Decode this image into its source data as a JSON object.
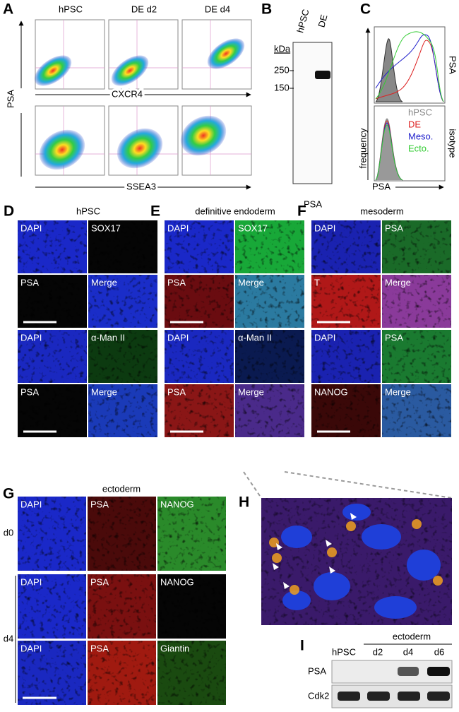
{
  "panel_a": {
    "label": "A",
    "columns": [
      "hPSC",
      "DE d2",
      "DE d4"
    ],
    "y_axis": "PSA",
    "x_axis_top": "CXCR4",
    "x_axis_bottom": "SSEA3"
  },
  "panel_b": {
    "label": "B",
    "lanes": [
      "hPSC",
      "DE"
    ],
    "unit": "kDa",
    "markers": [
      "250",
      "150"
    ],
    "blot": "PSA"
  },
  "panel_c": {
    "label": "C",
    "rows": [
      "PSA",
      "isotype"
    ],
    "legend": [
      "hPSC",
      "DE",
      "Meso.",
      "Ecto."
    ],
    "y_axis": "frequency",
    "x_axis": "PSA"
  },
  "panel_d": {
    "label": "D",
    "title": "hPSC",
    "tiles": [
      "DAPI",
      "SOX17",
      "PSA",
      "Merge",
      "DAPI",
      "α-Man II",
      "PSA",
      "Merge"
    ]
  },
  "panel_e": {
    "label": "E",
    "title": "definitive endoderm",
    "tiles": [
      "DAPI",
      "SOX17",
      "PSA",
      "Merge",
      "DAPI",
      "α-Man II",
      "PSA",
      "Merge"
    ]
  },
  "panel_f": {
    "label": "F",
    "title": "mesoderm",
    "tiles": [
      "DAPI",
      "PSA",
      "T",
      "Merge",
      "DAPI",
      "PSA",
      "NANOG",
      "Merge"
    ]
  },
  "panel_g": {
    "label": "G",
    "title": "ectoderm",
    "rows": [
      "d0",
      "d4"
    ],
    "tiles": [
      "DAPI",
      "PSA",
      "NANOG",
      "DAPI",
      "PSA",
      "NANOG",
      "DAPI",
      "PSA",
      "Giantin"
    ]
  },
  "panel_h": {
    "label": "H"
  },
  "panel_i": {
    "label": "I",
    "group": "ectoderm",
    "lanes": [
      "hPSC",
      "d2",
      "d4",
      "d6"
    ],
    "rows": [
      "PSA",
      "Cdk2"
    ]
  }
}
